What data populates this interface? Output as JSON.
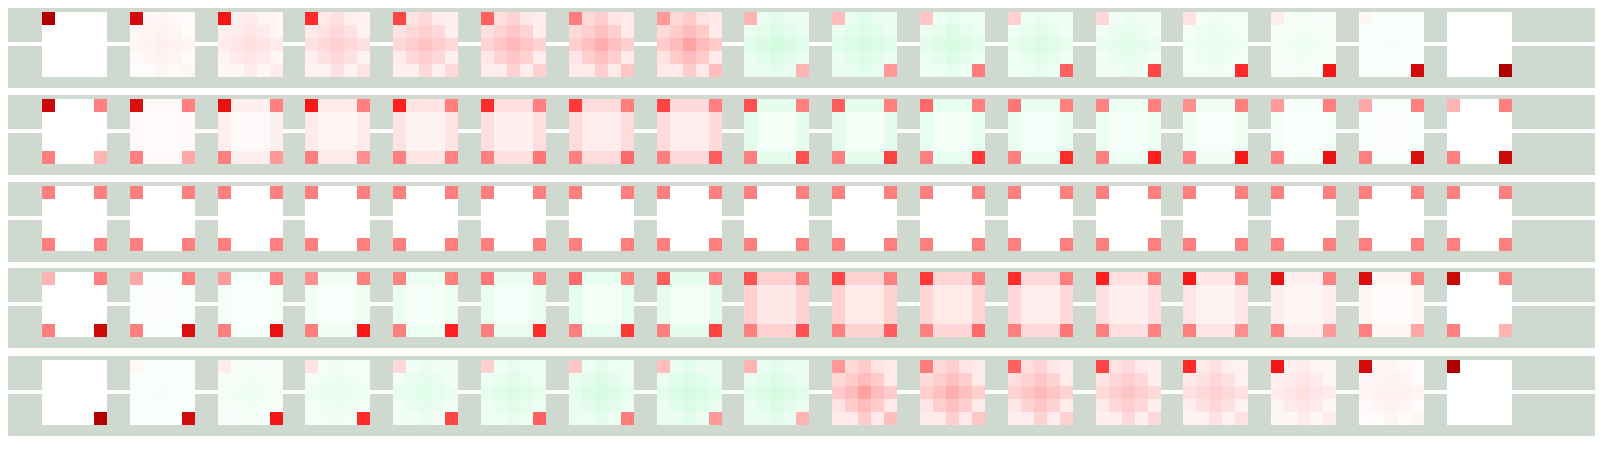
{
  "grid": {
    "rows": 5,
    "cols": 17,
    "kernel_size": 5,
    "background_color": "#cfd9d0",
    "stripe_color": "#ffffff",
    "colors": {
      "red_dark": "#b00000",
      "red": "#ff1a1a",
      "red_mid": "#ff6b6b",
      "red_light": "#ffb3b3",
      "red_pale": "#ffdede",
      "green": "#99f7b8",
      "green_pale": "#d8fae2",
      "white": "#ffffff"
    }
  }
}
